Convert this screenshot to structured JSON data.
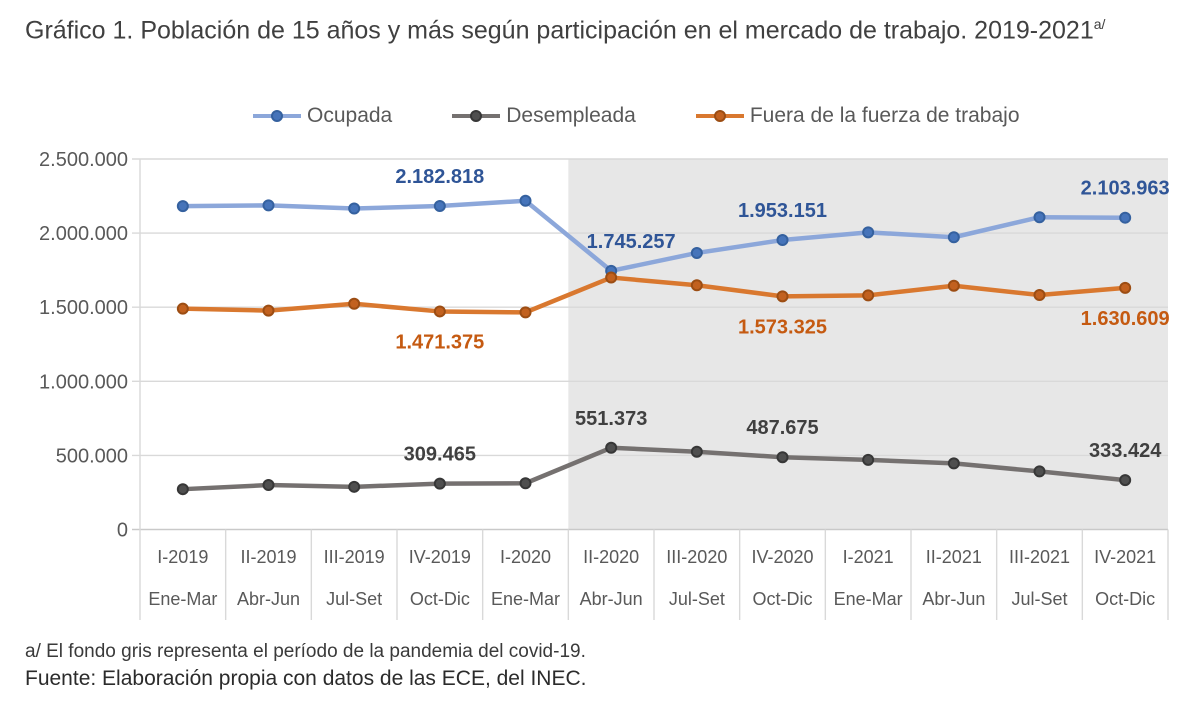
{
  "title": {
    "text": "Gráfico 1. Población de 15 años y más según participación en el mercado de trabajo. 2019-2021",
    "superscript": "a/"
  },
  "footnotes": {
    "note": "a/ El fondo gris representa el período de la pandemia del covid-19.",
    "source": "Fuente: Elaboración propia con datos de las ECE, del INEC."
  },
  "chart_data": {
    "type": "line",
    "title": "Población de 15 años y más según participación en el mercado de trabajo 2019-2021",
    "legend_position": "top",
    "grid": "horizontal",
    "x_categories": [
      {
        "quarter": "I-2019",
        "period": "Ene-Mar"
      },
      {
        "quarter": "II-2019",
        "period": "Abr-Jun"
      },
      {
        "quarter": "III-2019",
        "period": "Jul-Set"
      },
      {
        "quarter": "IV-2019",
        "period": "Oct-Dic"
      },
      {
        "quarter": "I-2020",
        "period": "Ene-Mar"
      },
      {
        "quarter": "II-2020",
        "period": "Abr-Jun"
      },
      {
        "quarter": "III-2020",
        "period": "Jul-Set"
      },
      {
        "quarter": "IV-2020",
        "period": "Oct-Dic"
      },
      {
        "quarter": "I-2021",
        "period": "Ene-Mar"
      },
      {
        "quarter": "II-2021",
        "period": "Abr-Jun"
      },
      {
        "quarter": "III-2021",
        "period": "Jul-Set"
      },
      {
        "quarter": "IV-2021",
        "period": "Oct-Dic"
      }
    ],
    "y_axis": {
      "min": 0,
      "max": 2500000,
      "interval": 500000,
      "tick_labels": [
        "2.500.000",
        "2.000.000",
        "1.500.000",
        "1.000.000",
        "500.000",
        "0"
      ]
    },
    "pandemic_shading": {
      "from_category": "II-2020",
      "to_category": "IV-2021",
      "color": "#E7E7E7",
      "meaning": "período de la pandemia del covid-19"
    },
    "series": [
      {
        "name": "Ocupada",
        "line_color": "#8CA7DA",
        "marker_fill": "#4674BA",
        "marker_border": "#35619F",
        "label_color": "#2F5597",
        "label_position": "above",
        "values": [
          2182000,
          2187000,
          2166000,
          2182818,
          2218000,
          1745257,
          1866000,
          1953151,
          2005000,
          1972000,
          2107000,
          2103963
        ],
        "data_labels": [
          {
            "index": 3,
            "text": "2.182.818"
          },
          {
            "index": 5,
            "text": "1.745.257",
            "dx": 20
          },
          {
            "index": 7,
            "text": "1.953.151"
          },
          {
            "index": 11,
            "text": "2.103.963"
          }
        ]
      },
      {
        "name": "Desempleada",
        "line_color": "#757170",
        "marker_fill": "#4F4F4F",
        "marker_border": "#373737",
        "label_color": "#404040",
        "label_position": "above",
        "values": [
          272000,
          300000,
          288000,
          309465,
          312000,
          551373,
          525000,
          487675,
          470000,
          446000,
          392000,
          333424
        ],
        "data_labels": [
          {
            "index": 3,
            "text": "309.465"
          },
          {
            "index": 5,
            "text": "551.373"
          },
          {
            "index": 7,
            "text": "487.675"
          },
          {
            "index": 11,
            "text": "333.424"
          }
        ]
      },
      {
        "name": "Fuera de la fuerza de trabajo",
        "line_color": "#D9782F",
        "marker_fill": "#C2611F",
        "marker_border": "#9C4D13",
        "label_color": "#C55A11",
        "label_position": "below",
        "values": [
          1490000,
          1477000,
          1523000,
          1471375,
          1465000,
          1700000,
          1648000,
          1573325,
          1580000,
          1645000,
          1582000,
          1630609
        ],
        "data_labels": [
          {
            "index": 3,
            "text": "1.471.375"
          },
          {
            "index": 7,
            "text": "1.573.325"
          },
          {
            "index": 11,
            "text": "1.630.609"
          }
        ]
      }
    ]
  }
}
